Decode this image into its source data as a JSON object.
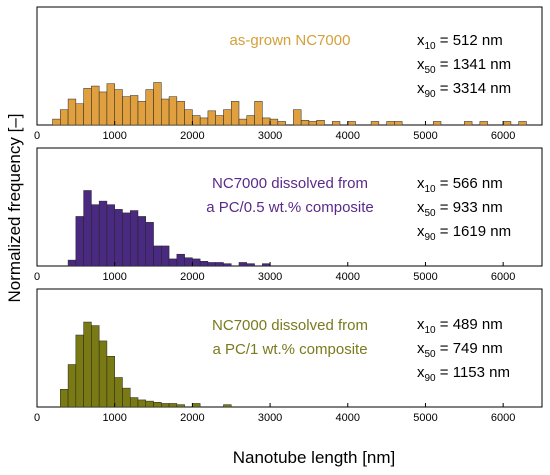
{
  "figure": {
    "ylabel": "Normalized frequency [–]",
    "xlabel": "Nanotube length [nm]"
  },
  "chart_data": [
    {
      "type": "bar",
      "xlim": [
        0,
        6500
      ],
      "ylim": [
        0,
        1
      ],
      "xticks": [
        "0",
        "1000",
        "2000",
        "3000",
        "4000",
        "5000",
        "6000"
      ],
      "bin_width": 100,
      "color": "#E0A040",
      "title": "as-grown NC7000",
      "title_color": "#D4A03A",
      "stats": [
        {
          "sub": "10",
          "value": "= 512 nm"
        },
        {
          "sub": "50",
          "value": "= 1341 nm"
        },
        {
          "sub": "90",
          "value": "= 3314 nm"
        }
      ],
      "bins": [
        {
          "x": 200,
          "y": 0.05
        },
        {
          "x": 300,
          "y": 0.13
        },
        {
          "x": 400,
          "y": 0.22
        },
        {
          "x": 500,
          "y": 0.18
        },
        {
          "x": 600,
          "y": 0.31
        },
        {
          "x": 700,
          "y": 0.33
        },
        {
          "x": 800,
          "y": 0.28
        },
        {
          "x": 900,
          "y": 0.35
        },
        {
          "x": 1000,
          "y": 0.3
        },
        {
          "x": 1100,
          "y": 0.24
        },
        {
          "x": 1200,
          "y": 0.25
        },
        {
          "x": 1300,
          "y": 0.2
        },
        {
          "x": 1400,
          "y": 0.3
        },
        {
          "x": 1500,
          "y": 0.36
        },
        {
          "x": 1600,
          "y": 0.22
        },
        {
          "x": 1700,
          "y": 0.24
        },
        {
          "x": 1800,
          "y": 0.2
        },
        {
          "x": 1900,
          "y": 0.13
        },
        {
          "x": 2000,
          "y": 0.08
        },
        {
          "x": 2100,
          "y": 0.06
        },
        {
          "x": 2200,
          "y": 0.12
        },
        {
          "x": 2300,
          "y": 0.08
        },
        {
          "x": 2400,
          "y": 0.13
        },
        {
          "x": 2500,
          "y": 0.2
        },
        {
          "x": 2600,
          "y": 0.05
        },
        {
          "x": 2700,
          "y": 0.08
        },
        {
          "x": 2800,
          "y": 0.2
        },
        {
          "x": 2900,
          "y": 0.06
        },
        {
          "x": 3000,
          "y": 0.05
        },
        {
          "x": 3100,
          "y": 0.03
        },
        {
          "x": 3300,
          "y": 0.13
        },
        {
          "x": 3400,
          "y": 0.04
        },
        {
          "x": 3500,
          "y": 0.03
        },
        {
          "x": 3600,
          "y": 0.04
        },
        {
          "x": 3800,
          "y": 0.03
        },
        {
          "x": 4000,
          "y": 0.03
        },
        {
          "x": 4300,
          "y": 0.03
        },
        {
          "x": 4500,
          "y": 0.03
        },
        {
          "x": 4600,
          "y": 0.03
        },
        {
          "x": 5100,
          "y": 0.03
        },
        {
          "x": 5500,
          "y": 0.03
        },
        {
          "x": 5700,
          "y": 0.03
        },
        {
          "x": 6000,
          "y": 0.03
        },
        {
          "x": 6200,
          "y": 0.03
        }
      ]
    },
    {
      "type": "bar",
      "xlim": [
        0,
        6500
      ],
      "ylim": [
        0,
        1
      ],
      "xticks": [
        "0",
        "1000",
        "2000",
        "3000",
        "4000",
        "5000",
        "6000"
      ],
      "bin_width": 100,
      "color": "#4A2A80",
      "title": [
        "NC7000 dissolved from",
        "a PC/0.5 wt.% composite"
      ],
      "title_color": "#5A2A8A",
      "stats": [
        {
          "sub": "10",
          "value": "= 566 nm"
        },
        {
          "sub": "50",
          "value": "= 933 nm"
        },
        {
          "sub": "90",
          "value": "= 1619 nm"
        }
      ],
      "bins": [
        {
          "x": 400,
          "y": 0.05
        },
        {
          "x": 500,
          "y": 0.42
        },
        {
          "x": 600,
          "y": 0.64
        },
        {
          "x": 700,
          "y": 0.52
        },
        {
          "x": 800,
          "y": 0.55
        },
        {
          "x": 900,
          "y": 0.52
        },
        {
          "x": 1000,
          "y": 0.48
        },
        {
          "x": 1100,
          "y": 0.45
        },
        {
          "x": 1200,
          "y": 0.47
        },
        {
          "x": 1300,
          "y": 0.42
        },
        {
          "x": 1400,
          "y": 0.37
        },
        {
          "x": 1500,
          "y": 0.17
        },
        {
          "x": 1600,
          "y": 0.17
        },
        {
          "x": 1700,
          "y": 0.06
        },
        {
          "x": 1800,
          "y": 0.1
        },
        {
          "x": 1900,
          "y": 0.07
        },
        {
          "x": 2000,
          "y": 0.06
        },
        {
          "x": 2100,
          "y": 0.04
        },
        {
          "x": 2200,
          "y": 0.03
        },
        {
          "x": 2300,
          "y": 0.03
        },
        {
          "x": 2400,
          "y": 0.02
        },
        {
          "x": 2600,
          "y": 0.03
        },
        {
          "x": 2700,
          "y": 0.02
        },
        {
          "x": 2900,
          "y": 0.02
        }
      ]
    },
    {
      "type": "bar",
      "xlim": [
        0,
        6500
      ],
      "ylim": [
        0,
        1
      ],
      "xticks": [
        "0",
        "1000",
        "2000",
        "3000",
        "4000",
        "5000",
        "6000"
      ],
      "bin_width": 100,
      "color": "#7A7A14",
      "title": [
        "NC7000 dissolved from",
        "a PC/1 wt.% composite"
      ],
      "title_color": "#7A7A1E",
      "stats": [
        {
          "sub": "10",
          "value": "= 489 nm"
        },
        {
          "sub": "50",
          "value": "= 749 nm"
        },
        {
          "sub": "90",
          "value": "= 1153 nm"
        }
      ],
      "bins": [
        {
          "x": 300,
          "y": 0.15
        },
        {
          "x": 400,
          "y": 0.36
        },
        {
          "x": 500,
          "y": 0.61
        },
        {
          "x": 600,
          "y": 0.72
        },
        {
          "x": 700,
          "y": 0.69
        },
        {
          "x": 800,
          "y": 0.56
        },
        {
          "x": 900,
          "y": 0.43
        },
        {
          "x": 1000,
          "y": 0.25
        },
        {
          "x": 1100,
          "y": 0.16
        },
        {
          "x": 1200,
          "y": 0.08
        },
        {
          "x": 1300,
          "y": 0.06
        },
        {
          "x": 1400,
          "y": 0.05
        },
        {
          "x": 1500,
          "y": 0.04
        },
        {
          "x": 1600,
          "y": 0.03
        },
        {
          "x": 1700,
          "y": 0.03
        },
        {
          "x": 1800,
          "y": 0.02
        },
        {
          "x": 2000,
          "y": 0.03
        },
        {
          "x": 2400,
          "y": 0.02
        }
      ]
    }
  ]
}
